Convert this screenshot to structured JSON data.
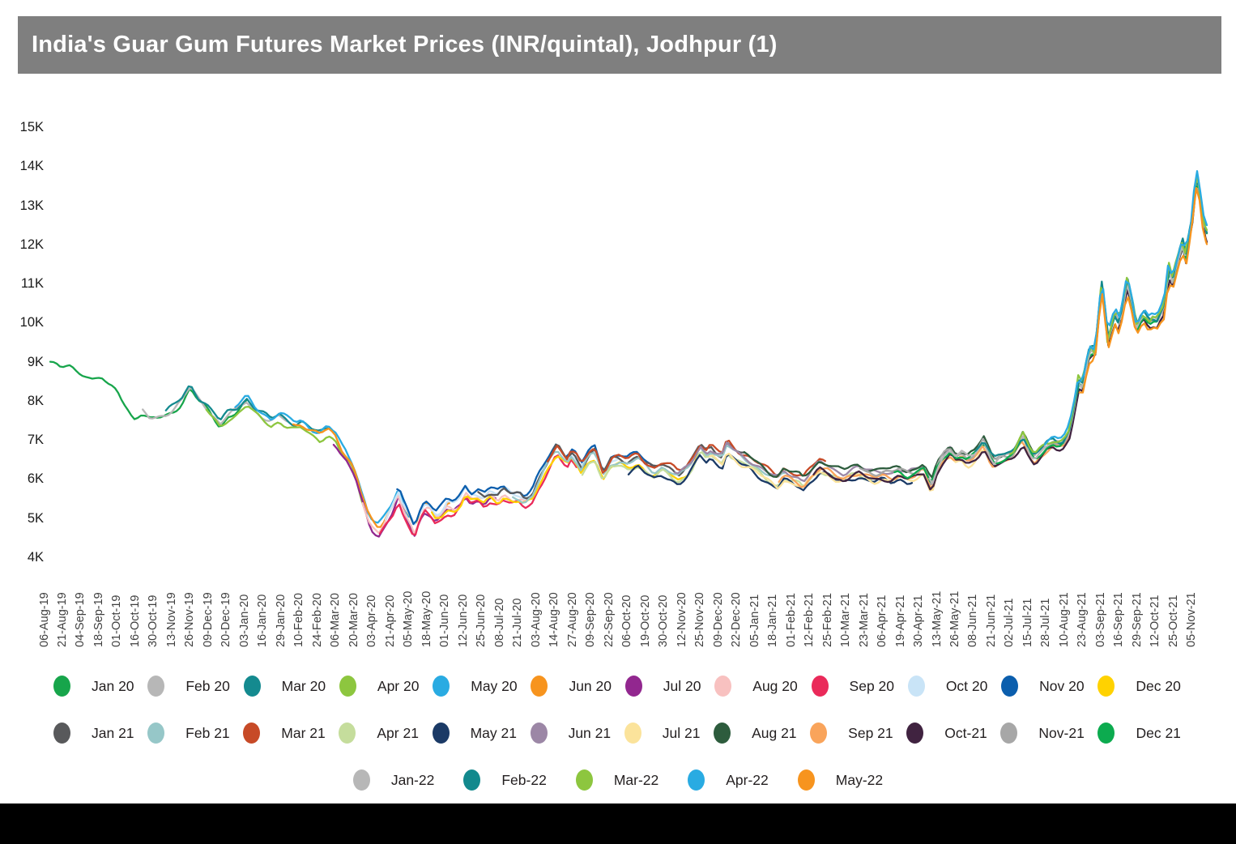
{
  "title": "India's Guar Gum Futures Market Prices (INR/quintal), Jodhpur (1)",
  "colors": {
    "title_bar_bg": "#7f7f7f",
    "title_text": "#ffffff",
    "axis_text": "#3f3f3f",
    "legend_text": "#231f20",
    "bottom_bar": "#000000",
    "background": "#ffffff"
  },
  "legend": {
    "rows": [
      [
        {
          "label": "Jan 20",
          "color": "#17a54b"
        },
        {
          "label": "Feb 20",
          "color": "#b7b7b7"
        },
        {
          "label": "Mar 20",
          "color": "#148a8f"
        },
        {
          "label": "Apr 20",
          "color": "#8dc63f"
        },
        {
          "label": "May 20",
          "color": "#29abe2"
        },
        {
          "label": "Jun 20",
          "color": "#f7941e"
        },
        {
          "label": "Jul 20",
          "color": "#92278f"
        },
        {
          "label": "Aug 20",
          "color": "#f8c1c0"
        },
        {
          "label": "Sep 20",
          "color": "#ea2a5a"
        },
        {
          "label": "Oct 20",
          "color": "#c9e4f7"
        },
        {
          "label": "Nov 20",
          "color": "#0b5ead"
        },
        {
          "label": "Dec 20",
          "color": "#ffd200"
        }
      ],
      [
        {
          "label": "Jan 21",
          "color": "#58595b"
        },
        {
          "label": "Feb 21",
          "color": "#96c7c8"
        },
        {
          "label": "Mar 21",
          "color": "#c74a27"
        },
        {
          "label": "Apr 21",
          "color": "#c5dd9c"
        },
        {
          "label": "May 21",
          "color": "#1b3a66"
        },
        {
          "label": "Jun 21",
          "color": "#9c87a6"
        },
        {
          "label": "Jul 21",
          "color": "#fbe39b"
        },
        {
          "label": "Aug 21",
          "color": "#2d5c3d"
        },
        {
          "label": "Sep 21",
          "color": "#f9a45b"
        },
        {
          "label": "Oct-21",
          "color": "#402340"
        },
        {
          "label": "Nov-21",
          "color": "#a7a7a7"
        },
        {
          "label": "Dec 21",
          "color": "#0cab4f"
        }
      ],
      [
        {
          "label": "Jan-22",
          "color": "#b7b7b7"
        },
        {
          "label": "Feb-22",
          "color": "#12898d"
        },
        {
          "label": "Mar-22",
          "color": "#8dc63f"
        },
        {
          "label": "Apr-22",
          "color": "#29abe2"
        },
        {
          "label": "May-22",
          "color": "#f7941e"
        }
      ]
    ]
  },
  "chart_data": {
    "type": "line",
    "title": "India's Guar Gum Futures Market Prices (INR/quintal), Jodhpur (1)",
    "xlabel": "",
    "ylabel": "",
    "unit": "INR/quintal (values in thousands)",
    "ylim": [
      4000,
      15000
    ],
    "grid": false,
    "legend_position": "bottom",
    "y_ticks": [
      "15K",
      "14K",
      "13K",
      "12K",
      "11K",
      "10K",
      "9K",
      "8K",
      "7K",
      "6K",
      "5K",
      "4K"
    ],
    "x_ticks": [
      "06-Aug-19",
      "21-Aug-19",
      "04-Sep-19",
      "18-Sep-19",
      "01-Oct-19",
      "16-Oct-19",
      "30-Oct-19",
      "13-Nov-19",
      "26-Nov-19",
      "09-Dec-19",
      "20-Dec-19",
      "03-Jan-20",
      "16-Jan-20",
      "29-Jan-20",
      "10-Feb-20",
      "24-Feb-20",
      "06-Mar-20",
      "20-Mar-20",
      "03-Apr-20",
      "21-Apr-20",
      "05-May-20",
      "18-May-20",
      "01-Jun-20",
      "12-Jun-20",
      "25-Jun-20",
      "08-Jul-20",
      "21-Jul-20",
      "03-Aug-20",
      "14-Aug-20",
      "27-Aug-20",
      "09-Sep-20",
      "22-Sep-20",
      "06-Oct-20",
      "19-Oct-20",
      "30-Oct-20",
      "12-Nov-20",
      "25-Nov-20",
      "09-Dec-20",
      "22-Dec-20",
      "05-Jan-21",
      "18-Jan-21",
      "01-Feb-21",
      "12-Feb-21",
      "25-Feb-21",
      "10-Mar-21",
      "23-Mar-21",
      "06-Apr-21",
      "19-Apr-21",
      "30-Apr-21",
      "13-May-21",
      "26-May-21",
      "08-Jun-21",
      "21-Jun-21",
      "02-Jul-21",
      "15-Jul-21",
      "28-Jul-21",
      "10-Aug-21",
      "23-Aug-21",
      "03-Sep-21",
      "16-Sep-21",
      "29-Sep-21",
      "12-Oct-21",
      "25-Oct-21",
      "05-Nov-21"
    ],
    "x_range": [
      "06-Aug-19",
      "05-Nov-21"
    ],
    "band_points_note": "Central price trend of the overlapping contract curves; x = fraction of timeline 06-Aug-19..05-Nov-21, y = price in K INR/quintal",
    "band_points": [
      [
        0.0,
        9.0
      ],
      [
        0.009,
        8.82
      ],
      [
        0.016,
        8.9
      ],
      [
        0.023,
        8.75
      ],
      [
        0.03,
        8.7
      ],
      [
        0.037,
        8.55
      ],
      [
        0.044,
        8.6
      ],
      [
        0.051,
        8.35
      ],
      [
        0.058,
        8.25
      ],
      [
        0.065,
        7.9
      ],
      [
        0.072,
        7.55
      ],
      [
        0.079,
        7.68
      ],
      [
        0.086,
        7.5
      ],
      [
        0.093,
        7.55
      ],
      [
        0.1,
        7.62
      ],
      [
        0.107,
        7.75
      ],
      [
        0.114,
        7.95
      ],
      [
        0.121,
        8.3
      ],
      [
        0.128,
        8.0
      ],
      [
        0.135,
        7.8
      ],
      [
        0.142,
        7.55
      ],
      [
        0.147,
        7.35
      ],
      [
        0.154,
        7.6
      ],
      [
        0.161,
        7.7
      ],
      [
        0.17,
        7.95
      ],
      [
        0.177,
        7.7
      ],
      [
        0.184,
        7.55
      ],
      [
        0.191,
        7.4
      ],
      [
        0.198,
        7.55
      ],
      [
        0.205,
        7.4
      ],
      [
        0.212,
        7.3
      ],
      [
        0.217,
        7.35
      ],
      [
        0.226,
        7.15
      ],
      [
        0.233,
        7.05
      ],
      [
        0.24,
        7.2
      ],
      [
        0.247,
        7.0
      ],
      [
        0.252,
        6.7
      ],
      [
        0.256,
        6.55
      ],
      [
        0.261,
        6.3
      ],
      [
        0.265,
        6.0
      ],
      [
        0.268,
        5.65
      ],
      [
        0.272,
        5.3
      ],
      [
        0.275,
        5.0
      ],
      [
        0.279,
        4.78
      ],
      [
        0.284,
        4.65
      ],
      [
        0.289,
        4.88
      ],
      [
        0.291,
        5.0
      ],
      [
        0.296,
        5.25
      ],
      [
        0.301,
        5.6
      ],
      [
        0.305,
        5.25
      ],
      [
        0.312,
        4.85
      ],
      [
        0.315,
        4.65
      ],
      [
        0.319,
        5.0
      ],
      [
        0.324,
        5.3
      ],
      [
        0.329,
        5.2
      ],
      [
        0.333,
        5.0
      ],
      [
        0.338,
        5.1
      ],
      [
        0.343,
        5.3
      ],
      [
        0.349,
        5.25
      ],
      [
        0.354,
        5.4
      ],
      [
        0.359,
        5.7
      ],
      [
        0.364,
        5.5
      ],
      [
        0.37,
        5.55
      ],
      [
        0.375,
        5.45
      ],
      [
        0.38,
        5.6
      ],
      [
        0.387,
        5.5
      ],
      [
        0.392,
        5.65
      ],
      [
        0.399,
        5.5
      ],
      [
        0.406,
        5.5
      ],
      [
        0.41,
        5.4
      ],
      [
        0.417,
        5.55
      ],
      [
        0.422,
        5.9
      ],
      [
        0.429,
        6.3
      ],
      [
        0.434,
        6.55
      ],
      [
        0.438,
        6.75
      ],
      [
        0.443,
        6.55
      ],
      [
        0.447,
        6.4
      ],
      [
        0.45,
        6.6
      ],
      [
        0.455,
        6.45
      ],
      [
        0.459,
        6.2
      ],
      [
        0.466,
        6.55
      ],
      [
        0.471,
        6.65
      ],
      [
        0.478,
        6.05
      ],
      [
        0.485,
        6.4
      ],
      [
        0.492,
        6.45
      ],
      [
        0.499,
        6.35
      ],
      [
        0.508,
        6.5
      ],
      [
        0.515,
        6.3
      ],
      [
        0.522,
        6.15
      ],
      [
        0.529,
        6.3
      ],
      [
        0.536,
        6.2
      ],
      [
        0.543,
        6.05
      ],
      [
        0.55,
        6.2
      ],
      [
        0.555,
        6.4
      ],
      [
        0.562,
        6.8
      ],
      [
        0.567,
        6.6
      ],
      [
        0.571,
        6.72
      ],
      [
        0.576,
        6.6
      ],
      [
        0.581,
        6.5
      ],
      [
        0.585,
        6.85
      ],
      [
        0.59,
        6.7
      ],
      [
        0.597,
        6.55
      ],
      [
        0.604,
        6.45
      ],
      [
        0.611,
        6.3
      ],
      [
        0.618,
        6.15
      ],
      [
        0.623,
        6.05
      ],
      [
        0.629,
        5.95
      ],
      [
        0.634,
        6.15
      ],
      [
        0.641,
        6.05
      ],
      [
        0.648,
        5.98
      ],
      [
        0.651,
        5.9
      ],
      [
        0.658,
        6.15
      ],
      [
        0.665,
        6.35
      ],
      [
        0.672,
        6.28
      ],
      [
        0.679,
        6.15
      ],
      [
        0.686,
        6.1
      ],
      [
        0.692,
        6.2
      ],
      [
        0.699,
        6.25
      ],
      [
        0.706,
        6.15
      ],
      [
        0.713,
        6.1
      ],
      [
        0.72,
        6.15
      ],
      [
        0.727,
        6.1
      ],
      [
        0.734,
        6.2
      ],
      [
        0.741,
        6.1
      ],
      [
        0.748,
        6.15
      ],
      [
        0.755,
        6.3
      ],
      [
        0.758,
        6.1
      ],
      [
        0.762,
        5.8
      ],
      [
        0.767,
        6.3
      ],
      [
        0.772,
        6.55
      ],
      [
        0.778,
        6.72
      ],
      [
        0.783,
        6.55
      ],
      [
        0.788,
        6.62
      ],
      [
        0.793,
        6.5
      ],
      [
        0.799,
        6.6
      ],
      [
        0.804,
        6.8
      ],
      [
        0.807,
        6.95
      ],
      [
        0.812,
        6.6
      ],
      [
        0.816,
        6.4
      ],
      [
        0.821,
        6.5
      ],
      [
        0.826,
        6.55
      ],
      [
        0.832,
        6.6
      ],
      [
        0.837,
        6.85
      ],
      [
        0.841,
        7.05
      ],
      [
        0.846,
        6.7
      ],
      [
        0.851,
        6.5
      ],
      [
        0.856,
        6.65
      ],
      [
        0.861,
        6.8
      ],
      [
        0.867,
        6.9
      ],
      [
        0.872,
        6.85
      ],
      [
        0.876,
        6.9
      ],
      [
        0.881,
        7.15
      ],
      [
        0.886,
        7.9
      ],
      [
        0.889,
        8.5
      ],
      [
        0.892,
        8.3
      ],
      [
        0.897,
        9.05
      ],
      [
        0.9,
        9.3
      ],
      [
        0.903,
        9.1
      ],
      [
        0.906,
        10.0
      ],
      [
        0.909,
        11.0
      ],
      [
        0.912,
        10.3
      ],
      [
        0.914,
        9.45
      ],
      [
        0.918,
        9.9
      ],
      [
        0.921,
        10.2
      ],
      [
        0.924,
        9.9
      ],
      [
        0.928,
        10.5
      ],
      [
        0.931,
        11.05
      ],
      [
        0.936,
        10.4
      ],
      [
        0.939,
        9.8
      ],
      [
        0.943,
        10.05
      ],
      [
        0.946,
        10.15
      ],
      [
        0.95,
        9.95
      ],
      [
        0.953,
        10.05
      ],
      [
        0.957,
        10.0
      ],
      [
        0.96,
        10.2
      ],
      [
        0.963,
        10.35
      ],
      [
        0.967,
        11.4
      ],
      [
        0.97,
        11.0
      ],
      [
        0.973,
        11.35
      ],
      [
        0.977,
        11.8
      ],
      [
        0.979,
        12.0
      ],
      [
        0.982,
        11.6
      ],
      [
        0.984,
        12.15
      ],
      [
        0.987,
        12.4
      ],
      [
        0.989,
        13.3
      ],
      [
        0.992,
        13.75
      ],
      [
        0.994,
        13.2
      ],
      [
        0.997,
        12.5
      ],
      [
        1.0,
        12.25
      ]
    ],
    "series": [
      {
        "name": "Jan 20",
        "color": "#17a54b",
        "start": 0.0,
        "end": 0.17,
        "offset_k": 0.0
      },
      {
        "name": "Feb 20",
        "color": "#b7b7b7",
        "start": 0.08,
        "end": 0.205,
        "offset_k": 0.05
      },
      {
        "name": "Mar 20",
        "color": "#148a8f",
        "start": 0.1,
        "end": 0.24,
        "offset_k": 0.12
      },
      {
        "name": "Apr 20",
        "color": "#8dc63f",
        "start": 0.135,
        "end": 0.275,
        "offset_k": -0.05
      },
      {
        "name": "May 20",
        "color": "#29abe2",
        "start": 0.16,
        "end": 0.31,
        "offset_k": 0.15
      },
      {
        "name": "Jun 20",
        "color": "#f7941e",
        "start": 0.21,
        "end": 0.345,
        "offset_k": 0.08
      },
      {
        "name": "Jul 20",
        "color": "#92278f",
        "start": 0.245,
        "end": 0.385,
        "offset_k": -0.1
      },
      {
        "name": "Aug 20",
        "color": "#f8c1c0",
        "start": 0.27,
        "end": 0.42,
        "offset_k": -0.02
      },
      {
        "name": "Sep 20",
        "color": "#ea2a5a",
        "start": 0.285,
        "end": 0.455,
        "offset_k": -0.15
      },
      {
        "name": "Oct 20",
        "color": "#c9e4f7",
        "start": 0.29,
        "end": 0.49,
        "offset_k": 0.1
      },
      {
        "name": "Nov 20",
        "color": "#0b5ead",
        "start": 0.3,
        "end": 0.525,
        "offset_k": 0.18
      },
      {
        "name": "Dec 20",
        "color": "#ffd200",
        "start": 0.33,
        "end": 0.56,
        "offset_k": -0.08
      },
      {
        "name": "Jan 21",
        "color": "#58595b",
        "start": 0.37,
        "end": 0.6,
        "offset_k": 0.1
      },
      {
        "name": "Feb 21",
        "color": "#96c7c8",
        "start": 0.4,
        "end": 0.635,
        "offset_k": 0.02
      },
      {
        "name": "Mar 21",
        "color": "#c74a27",
        "start": 0.43,
        "end": 0.67,
        "offset_k": 0.14
      },
      {
        "name": "Apr 21",
        "color": "#c5dd9c",
        "start": 0.46,
        "end": 0.71,
        "offset_k": -0.12
      },
      {
        "name": "May 21",
        "color": "#1b3a66",
        "start": 0.5,
        "end": 0.745,
        "offset_k": -0.18
      },
      {
        "name": "Jun 21",
        "color": "#9c87a6",
        "start": 0.54,
        "end": 0.78,
        "offset_k": 0.06
      },
      {
        "name": "Jul 21",
        "color": "#fbe39b",
        "start": 0.57,
        "end": 0.815,
        "offset_k": -0.15
      },
      {
        "name": "Aug 21",
        "color": "#2d5c3d",
        "start": 0.6,
        "end": 0.85,
        "offset_k": 0.12
      },
      {
        "name": "Sep 21",
        "color": "#f9a45b",
        "start": 0.63,
        "end": 0.885,
        "offset_k": -0.08
      },
      {
        "name": "Oct-21",
        "color": "#402340",
        "start": 0.66,
        "end": 1.0,
        "offset_k": -0.12
      },
      {
        "name": "Nov-21",
        "color": "#a7a7a7",
        "start": 0.7,
        "end": 1.0,
        "offset_k": 0.05
      },
      {
        "name": "Dec 21",
        "color": "#0cab4f",
        "start": 0.73,
        "end": 1.0,
        "offset_k": 0.0
      },
      {
        "name": "Jan-22",
        "color": "#b7b7b7",
        "start": 0.76,
        "end": 1.0,
        "offset_k": 0.04
      },
      {
        "name": "Feb-22",
        "color": "#12898d",
        "start": 0.8,
        "end": 1.0,
        "offset_k": 0.1
      },
      {
        "name": "Mar-22",
        "color": "#8dc63f",
        "start": 0.83,
        "end": 1.0,
        "offset_k": 0.12
      },
      {
        "name": "Apr-22",
        "color": "#29abe2",
        "start": 0.86,
        "end": 1.0,
        "offset_k": 0.18
      },
      {
        "name": "May-22",
        "color": "#f7941e",
        "start": 0.89,
        "end": 1.0,
        "offset_k": -0.2
      }
    ]
  }
}
